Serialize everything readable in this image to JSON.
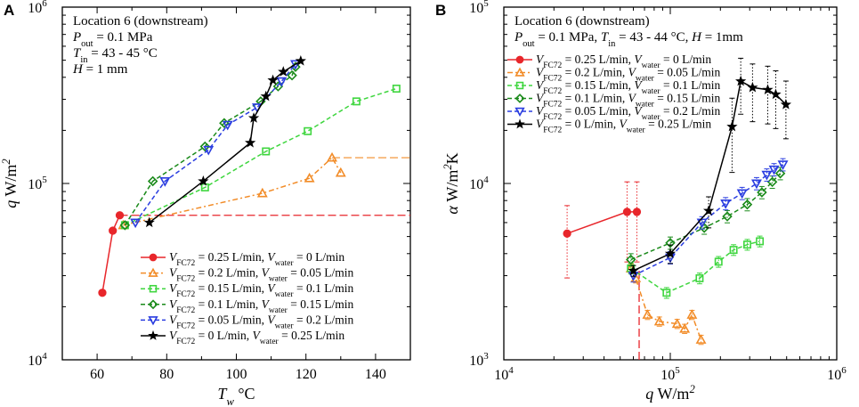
{
  "chart_data": [
    {
      "type": "scatter",
      "panel_label": "A",
      "x_title_main": "T",
      "x_title_sub": "w",
      "x_title_unit": "°C",
      "y_title_main": "q",
      "y_title_unit": "W/m",
      "y_title_sup": "2",
      "xscale": "linear",
      "yscale": "log",
      "xlim": [
        50,
        150
      ],
      "ylim": [
        10000,
        1000000
      ],
      "xticks": [
        60,
        80,
        100,
        120,
        140
      ],
      "yticks": [
        {
          "value": 10000,
          "base": "10",
          "exp": "4"
        },
        {
          "value": 100000,
          "base": "10",
          "exp": "5"
        },
        {
          "value": 1000000,
          "base": "10",
          "exp": "6"
        }
      ],
      "annotations": [
        {
          "text": "Location 6 (downstream)"
        },
        {
          "parts": [
            {
              "t": "P",
              "style": "i"
            },
            {
              "t": "out",
              "style": "sub"
            },
            {
              "t": " = 0.1 MPa"
            }
          ]
        },
        {
          "parts": [
            {
              "t": "T",
              "style": "i"
            },
            {
              "t": "in",
              "style": "sub"
            },
            {
              "t": " = 43 - 45 °C"
            }
          ]
        },
        {
          "parts": [
            {
              "t": "H",
              "style": "i"
            },
            {
              "t": " = 1 mm"
            }
          ]
        }
      ],
      "legend_position": "lower-right",
      "series": [
        {
          "name": "VFC72 = 0.25 L/min, Vwater = 0 L/min",
          "fc": "0.25",
          "water": "0",
          "color": "#e8262b",
          "marker": "circle",
          "dash": "solid",
          "x": [
            61.5,
            64.5,
            66.5
          ],
          "y": [
            24000,
            54000,
            66000
          ],
          "ext_y": 66000,
          "ext_dash": "long"
        },
        {
          "name": "VFC72 = 0.2 L/min, Vwater = 0.05 L/min",
          "fc": "0.2",
          "water": "0.05",
          "color": "#f28c28",
          "marker": "triangle-up",
          "dash": "dashdot",
          "x": [
            67.5,
            107.5,
            121,
            127.5,
            130
          ],
          "y": [
            58000,
            88000,
            107000,
            140000,
            115000
          ],
          "ext_y": 140000,
          "ext_dash": "long"
        },
        {
          "name": "VFC72 = 0.15 L/min, Vwater = 0.1 L/min",
          "fc": "0.15",
          "water": "0.1",
          "color": "#3fd63f",
          "marker": "square",
          "dash": "dash",
          "x": [
            68,
            91,
            108.5,
            120.5,
            134.5,
            146
          ],
          "y": [
            58000,
            95000,
            152000,
            198000,
            292000,
            345000
          ]
        },
        {
          "name": "VFC72 = 0.1 L/min, Vwater = 0.15 L/min",
          "fc": "0.1",
          "water": "0.15",
          "color": "#1a8a1a",
          "marker": "diamond",
          "dash": "dash",
          "x": [
            68,
            76,
            91,
            96.5,
            107,
            112,
            116,
            117
          ],
          "y": [
            58000,
            103000,
            162000,
            220000,
            292000,
            355000,
            410000,
            458000
          ]
        },
        {
          "name": "VFC72 = 0.05 L/min, Vwater = 0.2 L/min",
          "fc": "0.05",
          "water": "0.2",
          "color": "#2a3de0",
          "marker": "triangle-down",
          "dash": "dash",
          "x": [
            71,
            79.5,
            92,
            97.5,
            106,
            113,
            117
          ],
          "y": [
            60000,
            103000,
            155000,
            215000,
            270000,
            380000,
            475000
          ]
        },
        {
          "name": "VFC72 = 0 L/min, Vwater = 0.25 L/min",
          "fc": "0",
          "water": "0.25",
          "color": "#000000",
          "marker": "star",
          "dash": "solid",
          "x": [
            75,
            90.5,
            104,
            105,
            108.5,
            110.5,
            113.5,
            118.5
          ],
          "y": [
            60000,
            103000,
            170000,
            235000,
            312000,
            385000,
            430000,
            495000
          ]
        }
      ]
    },
    {
      "type": "scatter",
      "panel_label": "B",
      "x_title_main": "q",
      "x_title_unit": "W/m",
      "x_title_sup": "2",
      "y_title_main": "α",
      "y_title_unit": "W/m",
      "y_title_sup": "2",
      "y_title_tail": "K",
      "xscale": "log",
      "yscale": "log",
      "xlim": [
        10000,
        1000000
      ],
      "ylim": [
        1000,
        100000
      ],
      "xticks": [
        {
          "value": 10000,
          "base": "10",
          "exp": "4"
        },
        {
          "value": 100000,
          "base": "10",
          "exp": "5"
        },
        {
          "value": 1000000,
          "base": "10",
          "exp": "6"
        }
      ],
      "yticks": [
        {
          "value": 1000,
          "base": "10",
          "exp": "3"
        },
        {
          "value": 10000,
          "base": "10",
          "exp": "4"
        },
        {
          "value": 100000,
          "base": "10",
          "exp": "5"
        }
      ],
      "annotations": [
        {
          "text": "Location 6 (downstream)"
        },
        {
          "parts": [
            {
              "t": "P",
              "style": "i"
            },
            {
              "t": "out",
              "style": "sub"
            },
            {
              "t": " = 0.1 MPa, "
            },
            {
              "t": "T",
              "style": "i"
            },
            {
              "t": "in",
              "style": "sub"
            },
            {
              "t": " = 43 - 44 °C, "
            },
            {
              "t": "H",
              "style": "i"
            },
            {
              "t": " = 1mm"
            }
          ]
        }
      ],
      "legend_position": "upper-left",
      "vline_x": 65000,
      "vline_color": "#e8262b",
      "series": [
        {
          "name": "VFC72 = 0.25 L/min, Vwater = 0 L/min",
          "fc": "0.25",
          "water": "0",
          "color": "#e8262b",
          "marker": "circle",
          "dash": "solid",
          "x": [
            24000,
            55000,
            63000
          ],
          "y": [
            5200,
            6900,
            6900
          ],
          "err": [
            0.44,
            0.48,
            0.48
          ]
        },
        {
          "name": "VFC72 = 0.2 L/min, Vwater = 0.05 L/min",
          "fc": "0.2",
          "water": "0.05",
          "color": "#f28c28",
          "marker": "triangle-up",
          "dash": "dashdot",
          "x": [
            58000,
            62000,
            73000,
            86000,
            110000,
            122000,
            135000,
            153000
          ],
          "y": [
            3300,
            2900,
            1800,
            1650,
            1600,
            1500,
            1800,
            1300
          ],
          "err": [
            0.06,
            0.06,
            0.06,
            0.06,
            0.06,
            0.06,
            0.06,
            0.06
          ]
        },
        {
          "name": "VFC72 = 0.15 L/min, Vwater = 0.1 L/min",
          "fc": "0.15",
          "water": "0.1",
          "color": "#3fd63f",
          "marker": "square",
          "dash": "dash",
          "x": [
            58000,
            95000,
            150000,
            195000,
            240000,
            290000,
            345000
          ],
          "y": [
            3300,
            2400,
            2900,
            3600,
            4200,
            4500,
            4700
          ],
          "err": [
            0.07,
            0.07,
            0.07,
            0.07,
            0.07,
            0.07,
            0.07
          ]
        },
        {
          "name": "VFC72 = 0.1 L/min, Vwater = 0.15 L/min",
          "fc": "0.1",
          "water": "0.15",
          "color": "#1a8a1a",
          "marker": "diamond",
          "dash": "dash",
          "x": [
            58000,
            100000,
            160000,
            220000,
            290000,
            355000,
            410000,
            458000
          ],
          "y": [
            3700,
            4600,
            5600,
            6500,
            7600,
            8900,
            10200,
            11400
          ],
          "err": [
            0.08,
            0.08,
            0.08,
            0.08,
            0.08,
            0.08,
            0.08,
            0.08
          ]
        },
        {
          "name": "VFC72 = 0.05 L/min, Vwater = 0.2 L/min",
          "fc": "0.05",
          "water": "0.2",
          "color": "#2a3de0",
          "marker": "triangle-down",
          "dash": "dash",
          "x": [
            60000,
            100000,
            155000,
            215000,
            270000,
            330000,
            380000,
            420000,
            475000
          ],
          "y": [
            3000,
            3800,
            6000,
            7700,
            8800,
            10000,
            11200,
            12000,
            12800
          ],
          "err": [
            0.08,
            0.08,
            0.08,
            0.08,
            0.08,
            0.08,
            0.08,
            0.08,
            0.08
          ]
        },
        {
          "name": "VFC72 = 0 L/min, Vwater = 0.25 L/min",
          "fc": "0",
          "water": "0.25",
          "color": "#000000",
          "marker": "star",
          "dash": "solid",
          "x": [
            60000,
            100000,
            170000,
            235000,
            265000,
            312000,
            385000,
            430000,
            495000
          ],
          "y": [
            3200,
            4000,
            7000,
            21000,
            38000,
            35000,
            34000,
            32000,
            28000
          ],
          "err": [
            0.07,
            0.12,
            0.2,
            0.45,
            0.35,
            0.36,
            0.36,
            0.36,
            0.36
          ]
        }
      ]
    }
  ]
}
